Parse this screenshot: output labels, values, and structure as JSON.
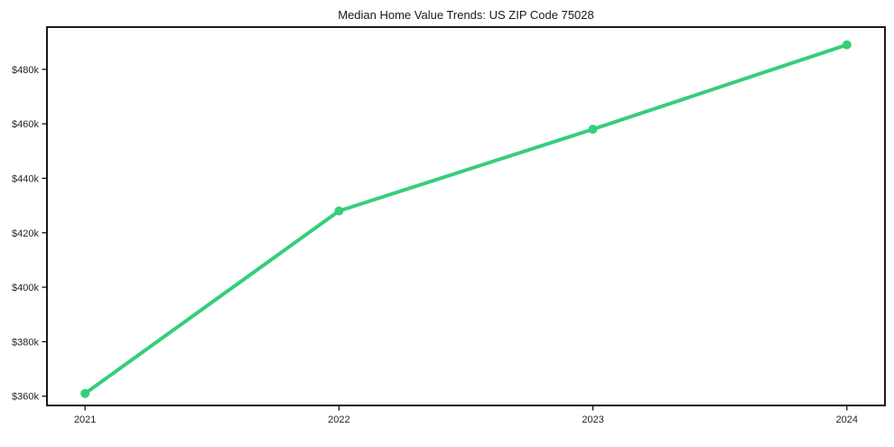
{
  "title": "Median Home Value Trends: US ZIP Code 75028",
  "chart_data": {
    "type": "line",
    "title": "Median Home Value Trends: US ZIP Code 75028",
    "x": [
      2021,
      2022,
      2023,
      2024
    ],
    "series": [
      {
        "name": "Median Home Value",
        "values": [
          361000,
          428000,
          458000,
          489000
        ]
      }
    ],
    "x_tick_labels": [
      "2021",
      "2022",
      "2023",
      "2024"
    ],
    "y_tick_values": [
      360000,
      380000,
      400000,
      420000,
      440000,
      460000,
      480000
    ],
    "y_tick_labels": [
      "$360k",
      "$380k",
      "$400k",
      "$420k",
      "$440k",
      "$460k",
      "$480k"
    ],
    "xlim": [
      2020.85,
      2024.15
    ],
    "ylim": [
      356600,
      495500
    ],
    "grid": false,
    "legend_position": "none",
    "line_color": "#35ce7c",
    "marker": "circle",
    "axis_color": "#000000",
    "text_color": "#262626",
    "background_color": "#ffffff",
    "xlabel": "",
    "ylabel": ""
  }
}
